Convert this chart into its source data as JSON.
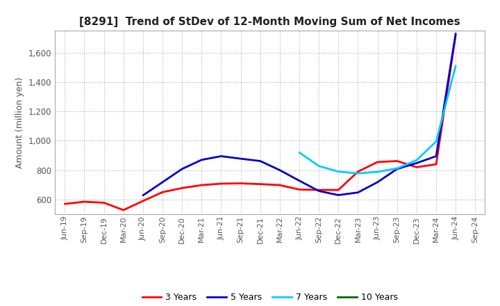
{
  "title": "[8291]  Trend of StDev of 12-Month Moving Sum of Net Incomes",
  "ylabel": "Amount (million yen)",
  "background_color": "#ffffff",
  "grid_color": "#999999",
  "ylim": [
    500,
    1750
  ],
  "yticks": [
    600,
    800,
    1000,
    1200,
    1400,
    1600
  ],
  "series": {
    "3 Years": {
      "color": "#ff0000",
      "linewidth": 2.0,
      "data": [
        [
          "Jun-19",
          570
        ],
        [
          "Sep-19",
          585
        ],
        [
          "Dec-19",
          578
        ],
        [
          "Mar-20",
          528
        ],
        [
          "Jun-20",
          590
        ],
        [
          "Sep-20",
          650
        ],
        [
          "Dec-20",
          678
        ],
        [
          "Mar-21",
          698
        ],
        [
          "Jun-21",
          708
        ],
        [
          "Sep-21",
          710
        ],
        [
          "Dec-21",
          705
        ],
        [
          "Mar-22",
          698
        ],
        [
          "Jun-22",
          668
        ],
        [
          "Sep-22",
          665
        ],
        [
          "Dec-22",
          665
        ],
        [
          "Mar-23",
          790
        ],
        [
          "Jun-23",
          855
        ],
        [
          "Sep-23",
          862
        ],
        [
          "Dec-23",
          820
        ],
        [
          "Mar-24",
          840
        ],
        [
          "Jun-24",
          1720
        ]
      ]
    },
    "5 Years": {
      "color": "#0000cc",
      "linewidth": 2.0,
      "data": [
        [
          "Jun-20",
          628
        ],
        [
          "Sep-20",
          718
        ],
        [
          "Dec-20",
          808
        ],
        [
          "Mar-21",
          870
        ],
        [
          "Jun-21",
          895
        ],
        [
          "Sep-21",
          878
        ],
        [
          "Dec-21",
          862
        ],
        [
          "Mar-22",
          800
        ],
        [
          "Jun-22",
          728
        ],
        [
          "Sep-22",
          658
        ],
        [
          "Dec-22",
          630
        ],
        [
          "Mar-23",
          648
        ],
        [
          "Jun-23",
          718
        ],
        [
          "Sep-23",
          808
        ],
        [
          "Dec-23",
          848
        ],
        [
          "Mar-24",
          895
        ],
        [
          "Jun-24",
          1730
        ]
      ]
    },
    "7 Years": {
      "color": "#00ccff",
      "linewidth": 2.0,
      "data": [
        [
          "Jun-22",
          920
        ],
        [
          "Sep-22",
          828
        ],
        [
          "Dec-22",
          790
        ],
        [
          "Mar-23",
          778
        ],
        [
          "Jun-23",
          788
        ],
        [
          "Sep-23",
          812
        ],
        [
          "Dec-23",
          868
        ],
        [
          "Mar-24",
          995
        ],
        [
          "Jun-24",
          1510
        ]
      ]
    },
    "10 Years": {
      "color": "#006600",
      "linewidth": 2.0,
      "data": []
    }
  },
  "xtick_labels": [
    "Jun-19",
    "Sep-19",
    "Dec-19",
    "Mar-20",
    "Jun-20",
    "Sep-20",
    "Dec-20",
    "Mar-21",
    "Jun-21",
    "Sep-21",
    "Dec-21",
    "Mar-22",
    "Jun-22",
    "Sep-22",
    "Dec-22",
    "Mar-23",
    "Jun-23",
    "Sep-23",
    "Dec-23",
    "Mar-24",
    "Jun-24",
    "Sep-24"
  ],
  "legend": [
    {
      "label": "3 Years",
      "color": "#ff0000"
    },
    {
      "label": "5 Years",
      "color": "#0000cc"
    },
    {
      "label": "7 Years",
      "color": "#00ccff"
    },
    {
      "label": "10 Years",
      "color": "#006600"
    }
  ]
}
